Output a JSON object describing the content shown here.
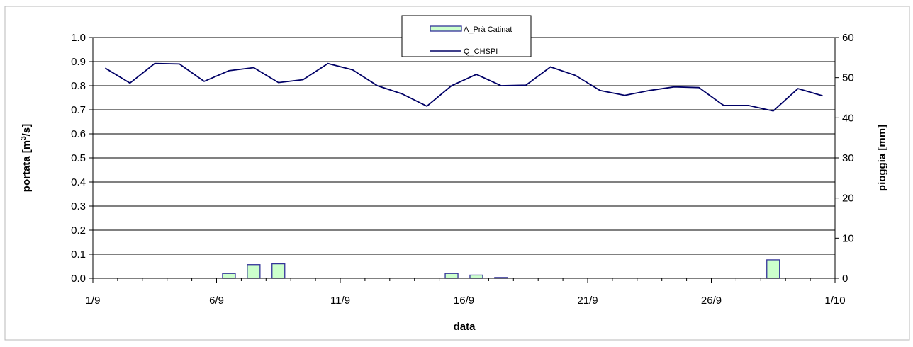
{
  "chart_data": {
    "type": "bar+line",
    "x_axis": {
      "label": "data",
      "tick_labels": [
        "1/9",
        "6/9",
        "11/9",
        "16/9",
        "21/9",
        "26/9",
        "1/10"
      ],
      "range_days": [
        1,
        31
      ]
    },
    "y_left": {
      "label_prefix": "portata [m",
      "label_sup": "3",
      "label_suffix": "/s]",
      "range": [
        0.0,
        1.0
      ],
      "tick_labels": [
        "0.0",
        "0.1",
        "0.2",
        "0.3",
        "0.4",
        "0.5",
        "0.6",
        "0.7",
        "0.8",
        "0.9",
        "1.0"
      ]
    },
    "y_right": {
      "label": "pioggia [mm]",
      "range": [
        0,
        60
      ],
      "tick_labels": [
        "0",
        "10",
        "20",
        "30",
        "40",
        "50",
        "60"
      ]
    },
    "grid": "horizontal",
    "legend": {
      "placement": "top-center",
      "entries": [
        {
          "name": "A_Prà Catinat",
          "kind": "bar"
        },
        {
          "name": "Q_CHSPI",
          "kind": "line"
        }
      ]
    },
    "series": [
      {
        "name": "A_Prà Catinat",
        "axis": "right",
        "kind": "bar",
        "color": "#ccffcc",
        "border": "#333399",
        "day": [
          6.5,
          7.5,
          8.5,
          15.5,
          16.5,
          17.5,
          28.5
        ],
        "values": [
          1.2,
          3.4,
          3.6,
          1.2,
          0.8,
          0.2,
          4.6
        ]
      },
      {
        "name": "Q_CHSPI",
        "axis": "left",
        "kind": "line",
        "color": "#000066",
        "day": [
          1.5,
          2.5,
          3.5,
          4.5,
          5.5,
          6.5,
          7.5,
          8.5,
          9.5,
          10.5,
          11.5,
          12.5,
          13.5,
          14.5,
          15.5,
          16.5,
          17.5,
          18.5,
          19.5,
          20.5,
          21.5,
          22.5,
          23.5,
          24.5,
          25.5,
          26.5,
          27.5,
          28.5,
          29.5,
          30.5
        ],
        "values": [
          0.873,
          0.811,
          0.892,
          0.89,
          0.818,
          0.862,
          0.875,
          0.813,
          0.825,
          0.892,
          0.866,
          0.8,
          0.766,
          0.715,
          0.8,
          0.847,
          0.8,
          0.802,
          0.878,
          0.843,
          0.78,
          0.76,
          0.78,
          0.795,
          0.792,
          0.718,
          0.718,
          0.695,
          0.788,
          0.758
        ]
      }
    ]
  }
}
